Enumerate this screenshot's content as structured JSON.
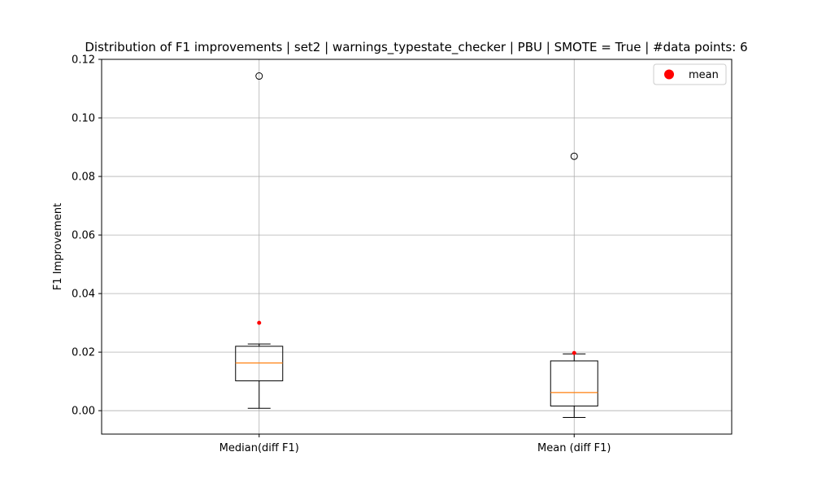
{
  "chart_data": {
    "type": "box",
    "title": "Distribution of F1 improvements | set2 | warnings_typestate_checker | PBU | SMOTE = True | #data points: 6",
    "xlabel": "",
    "ylabel": "F1 Improvement",
    "ylim": [
      -0.008,
      0.12
    ],
    "yticks": [
      0.0,
      0.02,
      0.04,
      0.06,
      0.08,
      0.1,
      0.12
    ],
    "ytick_labels": [
      "0.00",
      "0.02",
      "0.04",
      "0.06",
      "0.08",
      "0.10",
      "0.12"
    ],
    "grid": true,
    "legend": {
      "location": "upper right",
      "entries": [
        {
          "label": "mean",
          "color": "#ff0000",
          "marker": "circle"
        }
      ]
    },
    "categories": [
      "Median(diff F1)",
      "Mean (diff F1)"
    ],
    "boxes": [
      {
        "category": "Median(diff F1)",
        "whisker_low": 0.0008,
        "q1": 0.0102,
        "median": 0.0163,
        "q3": 0.022,
        "whisker_high": 0.0228,
        "mean": 0.03,
        "outliers": [
          0.1143
        ]
      },
      {
        "category": "Mean (diff F1)",
        "whisker_low": -0.0023,
        "q1": 0.0016,
        "median": 0.0062,
        "q3": 0.017,
        "whisker_high": 0.0194,
        "mean": 0.0197,
        "outliers": [
          0.0869
        ]
      }
    ],
    "colors": {
      "box": "#000000",
      "median": "#ff7f0e",
      "mean": "#ff0000",
      "grid": "#b0b0b0",
      "outlier": "#000000"
    }
  }
}
